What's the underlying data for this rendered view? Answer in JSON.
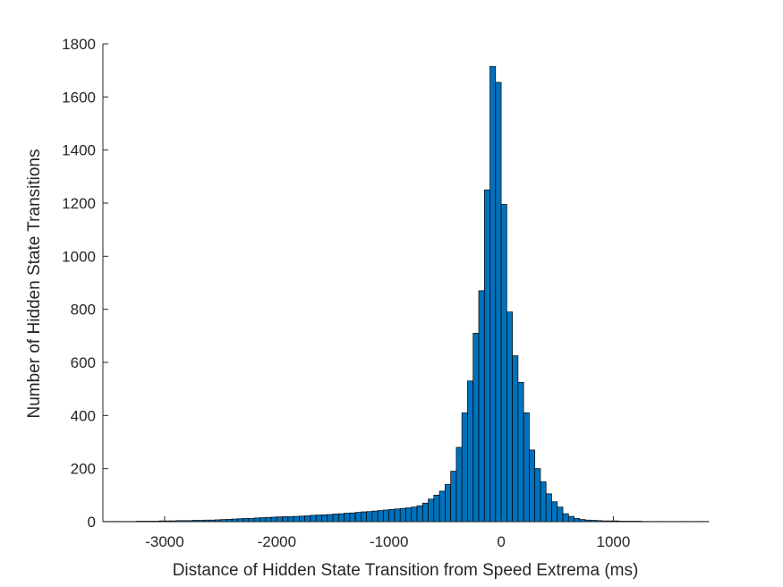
{
  "chart_data": {
    "type": "bar",
    "title": "",
    "xlabel": "Distance of Hidden State Transition from Speed Extrema (ms)",
    "ylabel": "Number of Hidden State Transitions",
    "xlim": [
      -3550,
      1850
    ],
    "ylim": [
      0,
      1800
    ],
    "bin_width": 50,
    "xticks": [
      -3000,
      -2000,
      -1000,
      0,
      1000
    ],
    "xtick_labels": [
      "-3000",
      "-2000",
      "-1000",
      "0",
      "1000"
    ],
    "yticks": [
      0,
      200,
      400,
      600,
      800,
      1000,
      1200,
      1400,
      1600,
      1800
    ],
    "ytick_labels": [
      "0",
      "200",
      "400",
      "600",
      "800",
      "1000",
      "1200",
      "1400",
      "1600",
      "1800"
    ],
    "grid": false,
    "bar_color": "#0072BD",
    "bin_centers": [
      -3525,
      -3475,
      -3425,
      -3375,
      -3325,
      -3275,
      -3225,
      -3175,
      -3125,
      -3075,
      -3025,
      -2975,
      -2925,
      -2875,
      -2825,
      -2775,
      -2725,
      -2675,
      -2625,
      -2575,
      -2525,
      -2475,
      -2425,
      -2375,
      -2325,
      -2275,
      -2225,
      -2175,
      -2125,
      -2075,
      -2025,
      -1975,
      -1925,
      -1875,
      -1825,
      -1775,
      -1725,
      -1675,
      -1625,
      -1575,
      -1525,
      -1475,
      -1425,
      -1375,
      -1325,
      -1275,
      -1225,
      -1175,
      -1125,
      -1075,
      -1025,
      -975,
      -925,
      -875,
      -825,
      -775,
      -725,
      -675,
      -625,
      -575,
      -525,
      -475,
      -425,
      -375,
      -325,
      -275,
      -225,
      -175,
      -125,
      -75,
      -25,
      25,
      75,
      125,
      175,
      225,
      275,
      325,
      375,
      425,
      475,
      525,
      575,
      625,
      675,
      725,
      775,
      825,
      875,
      925,
      975,
      1025,
      1075,
      1125,
      1175,
      1225,
      1275,
      1325,
      1375,
      1425,
      1475,
      1525,
      1575,
      1625,
      1675,
      1725,
      1775,
      1825
    ],
    "values": [
      1,
      1,
      1,
      1,
      1,
      1,
      2,
      2,
      2,
      2,
      3,
      3,
      3,
      4,
      4,
      4,
      5,
      5,
      6,
      6,
      7,
      8,
      9,
      10,
      11,
      12,
      12,
      14,
      15,
      16,
      17,
      18,
      19,
      19,
      20,
      21,
      22,
      24,
      25,
      26,
      27,
      29,
      30,
      32,
      33,
      35,
      37,
      38,
      40,
      42,
      44,
      46,
      48,
      50,
      52,
      55,
      60,
      70,
      85,
      100,
      115,
      140,
      190,
      280,
      410,
      530,
      710,
      870,
      1250,
      1715,
      1655,
      1195,
      790,
      625,
      525,
      410,
      270,
      200,
      150,
      105,
      75,
      55,
      30,
      20,
      12,
      8,
      6,
      5,
      4,
      3,
      3,
      3,
      2,
      2,
      2,
      2,
      1,
      1,
      1,
      1,
      1,
      1,
      1,
      1,
      1,
      1,
      1,
      1
    ]
  }
}
